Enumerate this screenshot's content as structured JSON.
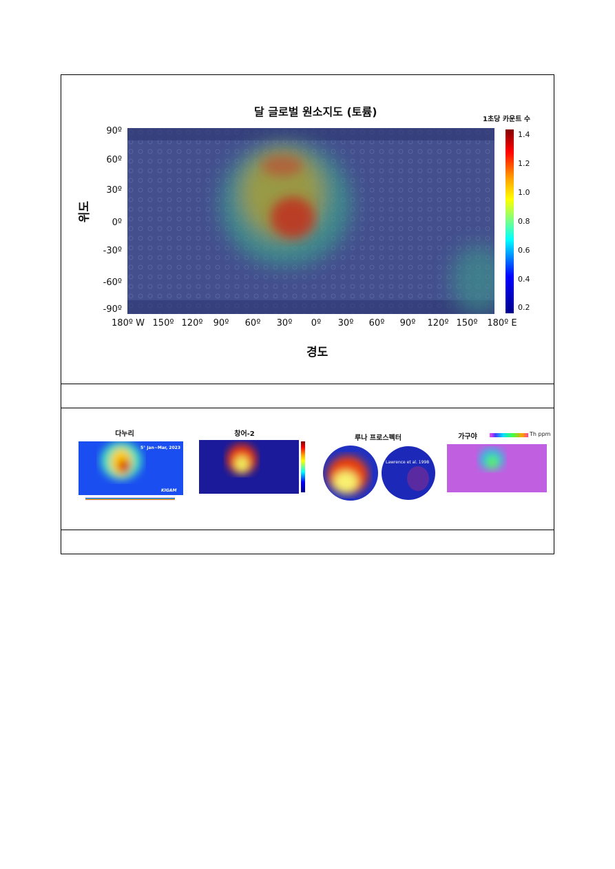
{
  "figure": {
    "title": "달 글로벌 원소지도 (토륨)",
    "colorbar_title": "1초당 카운트 수",
    "colorbar_ticks": [
      "1.4",
      "1.2",
      "1.0",
      "0.8",
      "0.6",
      "0.4",
      "0.2"
    ],
    "colorbar_colors": [
      "#800000",
      "#ff0000",
      "#ffa500",
      "#ffff00",
      "#00ffff",
      "#0000ff",
      "#00008b"
    ],
    "y_axis_label": "위도",
    "y_ticks": [
      "90º",
      "60º",
      "30º",
      "0º",
      "-30º",
      "-60º",
      "-90º"
    ],
    "x_axis_label": "경도",
    "x_ticks": [
      "180º W",
      "150º",
      "120º",
      "90º",
      "60º",
      "30º",
      "0º",
      "30º",
      "60º",
      "90º",
      "120º",
      "150º",
      "180º E"
    ]
  },
  "comparisons": [
    {
      "label": "다누리",
      "annotation": "5° Jan~Mar, 2023",
      "logo": "KIGAM"
    },
    {
      "label": "창어-2"
    },
    {
      "label": "루나 프로스펙터",
      "annotation": "Lawrence et al. 1998"
    },
    {
      "label": "가구야",
      "unit": "Th ppm"
    }
  ]
}
